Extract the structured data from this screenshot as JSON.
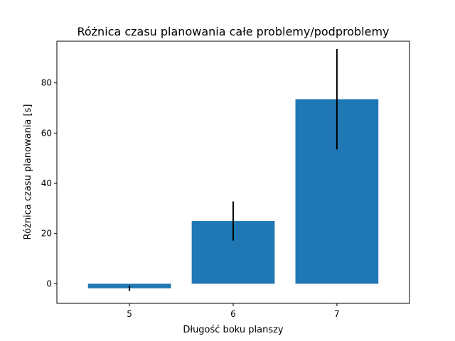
{
  "chart_data": {
    "type": "bar",
    "title": "Różnica czasu planowania całe problemy/podproblemy",
    "xlabel": "Długość boku planszy",
    "ylabel": "Różnica czasu planowania [s]",
    "categories": [
      "5",
      "6",
      "7"
    ],
    "values": [
      -1.8,
      25.0,
      73.5
    ],
    "errors": [
      1.1,
      7.8,
      20.0
    ],
    "ylim": [
      -7.8,
      96.6
    ],
    "yticks": [
      0,
      20,
      40,
      60,
      80
    ],
    "grid": false,
    "legend": "none",
    "bar_color": "#1f77b4",
    "error_color": "#000000"
  }
}
